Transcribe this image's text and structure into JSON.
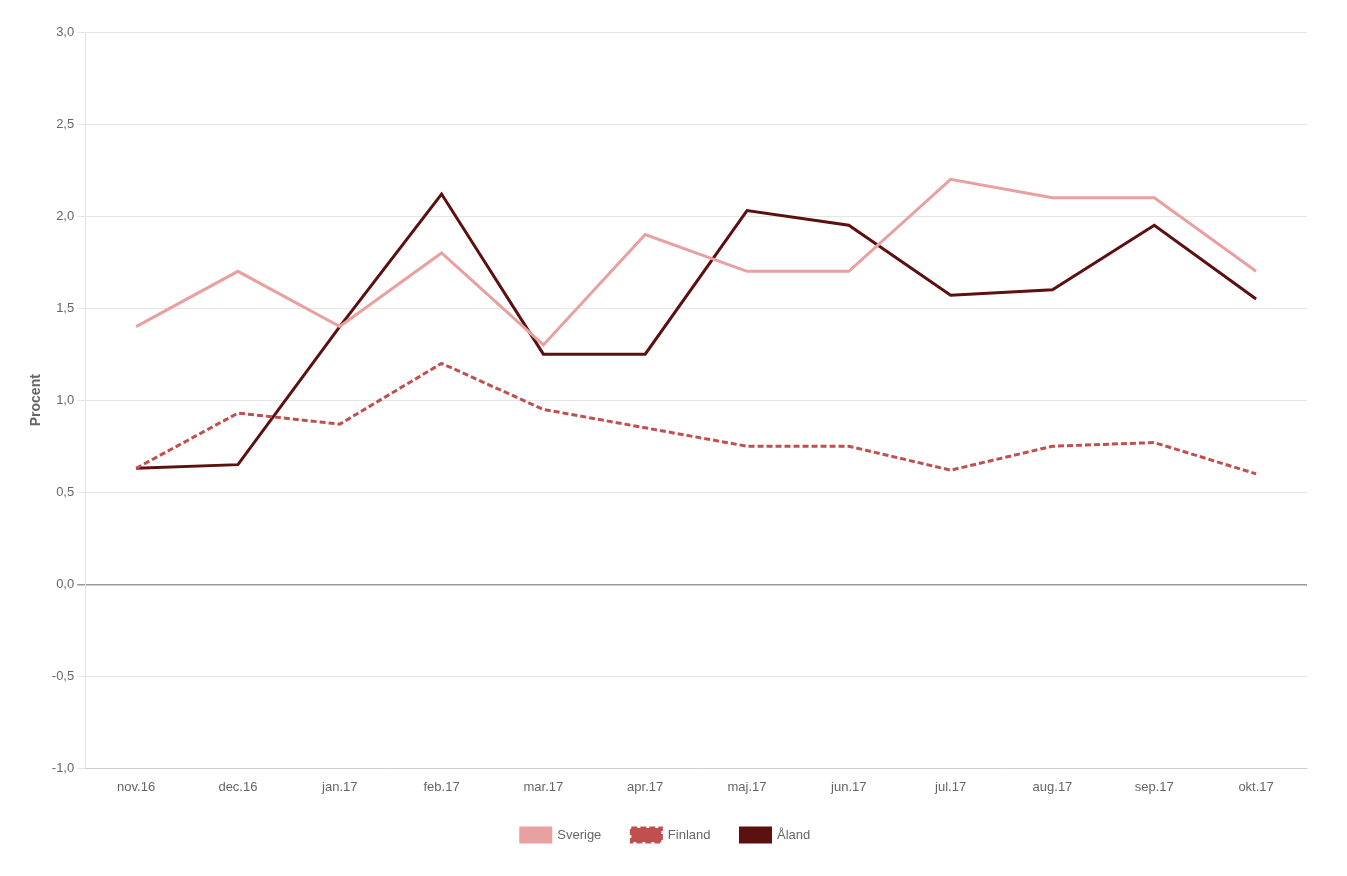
{
  "chart_data": {
    "type": "line",
    "ylabel": "Procent",
    "categories": [
      "nov.16",
      "dec.16",
      "jan.17",
      "feb.17",
      "mar.17",
      "apr.17",
      "maj.17",
      "jun.17",
      "jul.17",
      "aug.17",
      "sep.17",
      "okt.17"
    ],
    "series": [
      {
        "name": "Sverige",
        "color": "#E8A0A0",
        "line_style": "solid",
        "values": [
          1.4,
          1.7,
          1.4,
          1.8,
          1.3,
          1.9,
          1.7,
          1.7,
          2.2,
          2.1,
          2.1,
          1.7
        ]
      },
      {
        "name": "Finland",
        "color": "#C05050",
        "line_style": "dashed",
        "values": [
          0.63,
          0.93,
          0.87,
          1.2,
          0.95,
          0.85,
          0.75,
          0.75,
          0.62,
          0.75,
          0.77,
          0.6
        ]
      },
      {
        "name": "Åland",
        "color": "#5C1010",
        "line_style": "solid",
        "values": [
          0.63,
          0.65,
          1.4,
          2.12,
          1.25,
          1.25,
          2.03,
          1.95,
          1.57,
          1.6,
          1.95,
          1.55
        ]
      }
    ],
    "ylim": [
      -1.0,
      3.0
    ],
    "yticks": [
      {
        "value": -1.0,
        "label": "-1,0"
      },
      {
        "value": -0.5,
        "label": "-0,5"
      },
      {
        "value": 0.0,
        "label": "0,0"
      },
      {
        "value": 0.5,
        "label": "0,5"
      },
      {
        "value": 1.0,
        "label": "1,0"
      },
      {
        "value": 1.5,
        "label": "1,5"
      },
      {
        "value": 2.0,
        "label": "2,0"
      },
      {
        "value": 2.5,
        "label": "2,5"
      },
      {
        "value": 3.0,
        "label": "3,0"
      }
    ],
    "grid": true,
    "legend": "bottom"
  }
}
